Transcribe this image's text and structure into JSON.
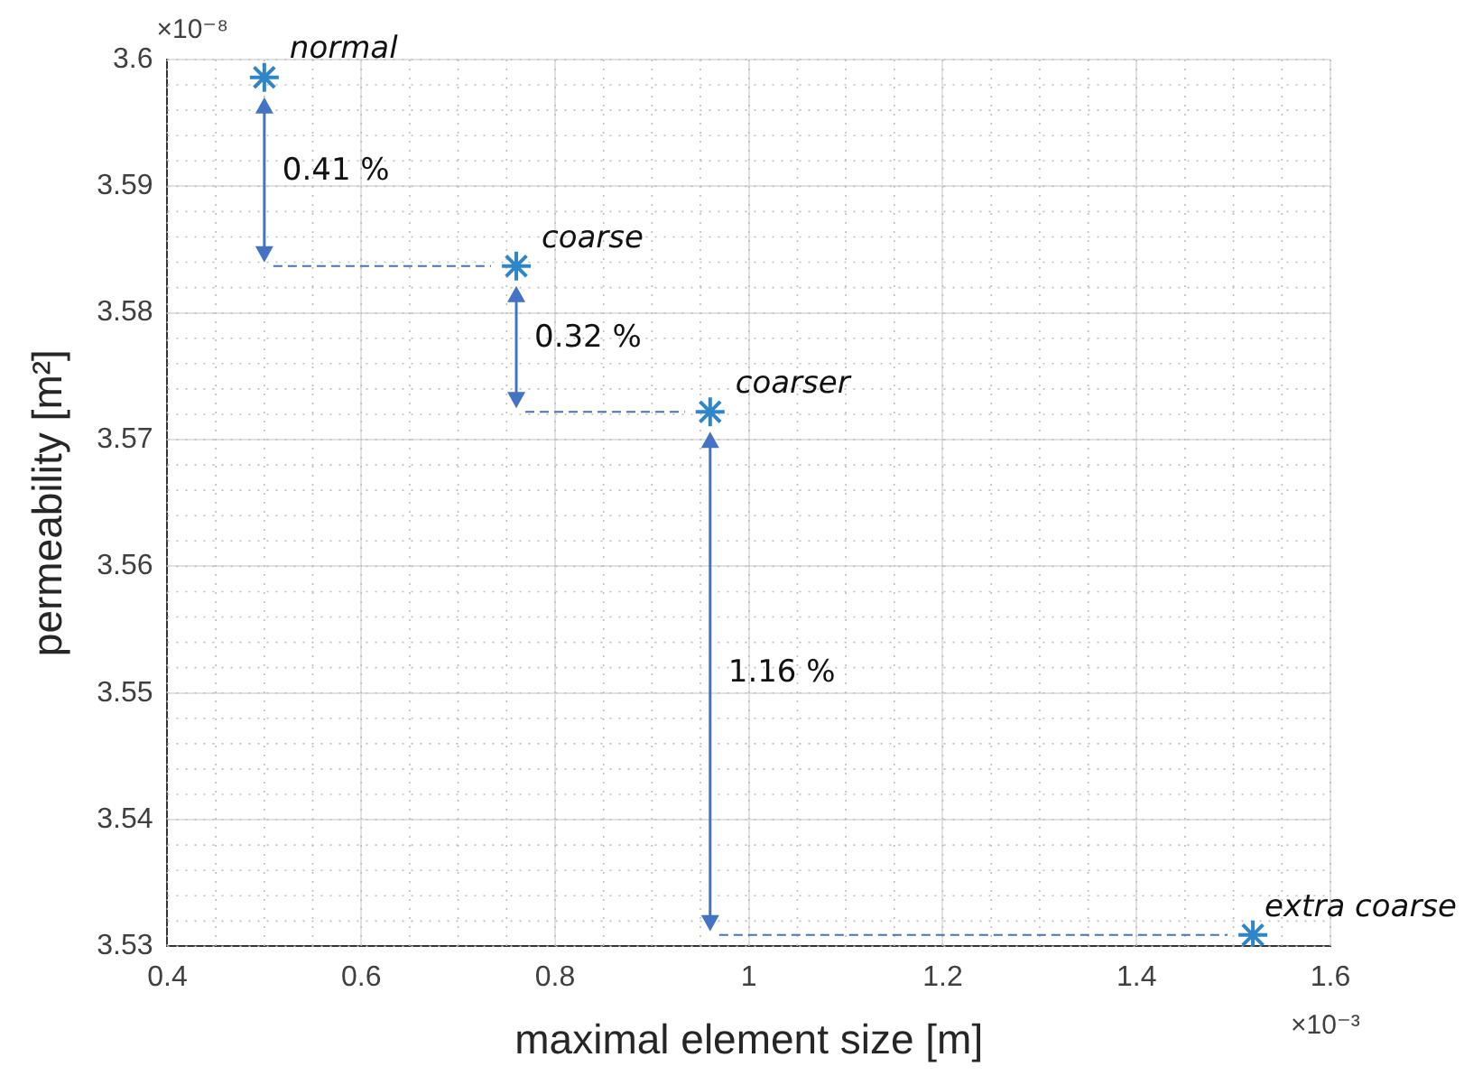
{
  "chart_data": {
    "type": "scatter",
    "xlabel": "maximal element size [m]",
    "ylabel": "permeability [m²]",
    "x": [
      0.5,
      0.76,
      0.96,
      1.52
    ],
    "series": [
      {
        "color": "#2e86c8",
        "values": [
          3.5986,
          3.5837,
          3.5722,
          3.5309
        ]
      }
    ],
    "xlim": [
      0.4,
      1.6
    ],
    "xticks": [
      0.4,
      0.6,
      0.8,
      1,
      1.2,
      1.4,
      1.6
    ],
    "ylim": [
      3.53,
      3.6
    ],
    "yticks": [
      3.53,
      3.54,
      3.55,
      3.56,
      3.57,
      3.58,
      3.59,
      3.6
    ],
    "grid": true,
    "legend": false,
    "marker": "cross",
    "annotations": [
      "×10⁻⁸",
      "×10⁻³",
      {
        "text": "normal",
        "x": 0.5,
        "y": 3.5986
      },
      {
        "text": "coarse",
        "x": 0.76,
        "y": 3.5837
      },
      {
        "text": "coarser",
        "x": 0.96,
        "y": 3.5722
      },
      {
        "text": "extra coarse",
        "x": 1.52,
        "y": 3.5309
      },
      "0.41 %",
      "0.32 %",
      "1.16 %"
    ]
  }
}
